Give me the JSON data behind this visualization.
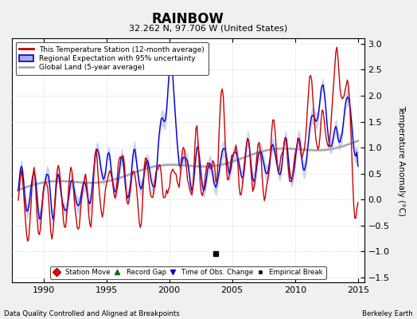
{
  "title": "RAINBOW",
  "subtitle": "32.262 N, 97.706 W (United States)",
  "xlabel_left": "Data Quality Controlled and Aligned at Breakpoints",
  "xlabel_right": "Berkeley Earth",
  "ylabel": "Temperature Anomaly (°C)",
  "xlim": [
    1987.5,
    2015.5
  ],
  "ylim": [
    -1.6,
    3.1
  ],
  "yticks": [
    -1.5,
    -1.0,
    -0.5,
    0.0,
    0.5,
    1.0,
    1.5,
    2.0,
    2.5,
    3.0
  ],
  "xticks": [
    1990,
    1995,
    2000,
    2005,
    2010,
    2015
  ],
  "bg_color": "#f0f0f0",
  "plot_bg_color": "#ffffff",
  "red_color": "#cc0000",
  "blue_color": "#0000cc",
  "blue_fill_color": "#aaaaee",
  "gray_color": "#aaaaaa",
  "empirical_break_x": 2003.7,
  "empirical_break_y": -1.05
}
